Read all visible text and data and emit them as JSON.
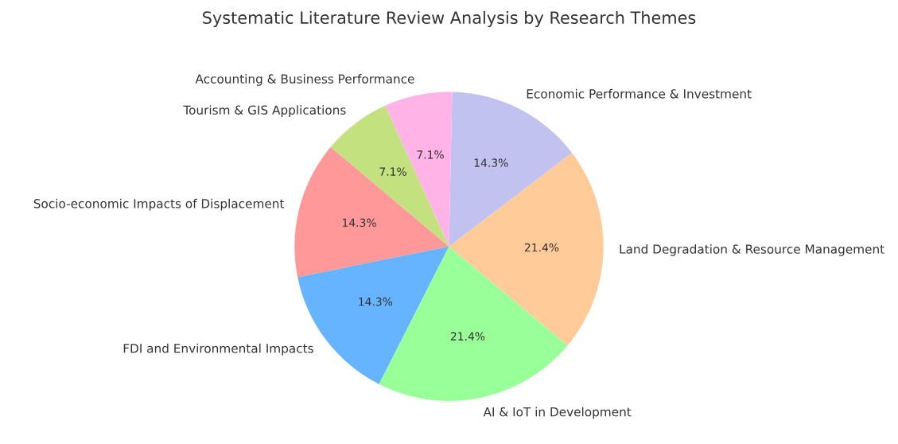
{
  "chart_data": {
    "type": "pie",
    "title": "Systematic Literature Review Analysis by Research Themes",
    "categories": [
      "Socio-economic Impacts of Displacement",
      "FDI and Environmental Impacts",
      "AI & IoT in Development",
      "Land Degradation & Resource Management",
      "Economic Performance & Investment",
      "Accounting & Business Performance",
      "Tourism & GIS Applications"
    ],
    "values": [
      14.3,
      14.3,
      21.4,
      21.4,
      14.3,
      7.1,
      7.1
    ],
    "colors": [
      "#ff9999",
      "#66b3ff",
      "#99ff99",
      "#ffcc99",
      "#c2c2f0",
      "#ffb3e6",
      "#c4e17f"
    ],
    "value_labels": [
      "14.3%",
      "14.3%",
      "21.4%",
      "21.4%",
      "14.3%",
      "7.1%",
      "7.1%"
    ]
  }
}
